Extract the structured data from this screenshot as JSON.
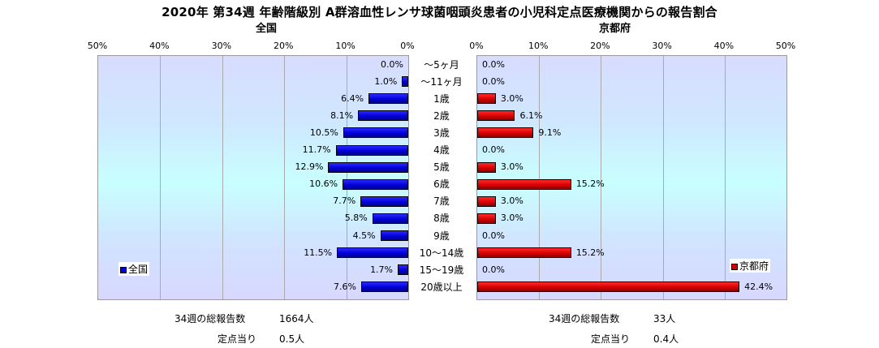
{
  "title": "2020年 第34週 年齢階級別 A群溶血性レンサ球菌咽頭炎患者の小児科定点医療機関からの報告割合",
  "left_subtitle": "全国",
  "right_subtitle": "京都府",
  "colors": {
    "nation": "#0000d8",
    "kyoto": "#d80000"
  },
  "chart_data": [
    {
      "type": "bar",
      "orientation": "horizontal",
      "direction": "reversed",
      "title": "全国",
      "categories": [
        "〜5ヶ月",
        "〜11ヶ月",
        "1歳",
        "2歳",
        "3歳",
        "4歳",
        "5歳",
        "6歳",
        "7歳",
        "8歳",
        "9歳",
        "10〜14歳",
        "15〜19歳",
        "20歳以上"
      ],
      "series": [
        {
          "name": "全国",
          "values": [
            0.0,
            1.0,
            6.4,
            8.1,
            10.5,
            11.7,
            12.9,
            10.6,
            7.7,
            5.8,
            4.5,
            11.5,
            1.7,
            7.6
          ]
        }
      ],
      "data_labels": [
        "0.0%",
        "1.0%",
        "6.4%",
        "8.1%",
        "10.5%",
        "11.7%",
        "12.9%",
        "10.6%",
        "7.7%",
        "5.8%",
        "4.5%",
        "11.5%",
        "1.7%",
        "7.6%"
      ],
      "xlim": [
        0,
        50
      ],
      "ticks": [
        "50%",
        "40%",
        "30%",
        "20%",
        "10%",
        "0%"
      ],
      "grid": true,
      "legend": "bottom-left"
    },
    {
      "type": "bar",
      "orientation": "horizontal",
      "title": "京都府",
      "categories": [
        "〜5ヶ月",
        "〜11ヶ月",
        "1歳",
        "2歳",
        "3歳",
        "4歳",
        "5歳",
        "6歳",
        "7歳",
        "8歳",
        "9歳",
        "10〜14歳",
        "15〜19歳",
        "20歳以上"
      ],
      "series": [
        {
          "name": "京都府",
          "values": [
            0.0,
            0.0,
            3.0,
            6.1,
            9.1,
            0.0,
            3.0,
            15.2,
            3.0,
            3.0,
            0.0,
            15.2,
            0.0,
            42.4
          ]
        }
      ],
      "data_labels": [
        "0.0%",
        "0.0%",
        "3.0%",
        "6.1%",
        "9.1%",
        "0.0%",
        "3.0%",
        "15.2%",
        "3.0%",
        "3.0%",
        "0.0%",
        "15.2%",
        "0.0%",
        "42.4%"
      ],
      "xlim": [
        0,
        50
      ],
      "ticks": [
        "0%",
        "10%",
        "20%",
        "30%",
        "40%",
        "50%"
      ],
      "grid": true,
      "legend": "bottom-right"
    }
  ],
  "footer": {
    "left": {
      "total_label": "34週の総報告数",
      "total_value": "1664人",
      "per_label": "定点当り",
      "per_value": "0.5人"
    },
    "right": {
      "total_label": "34週の総報告数",
      "total_value": "33人",
      "per_label": "定点当り",
      "per_value": "0.4人"
    }
  }
}
